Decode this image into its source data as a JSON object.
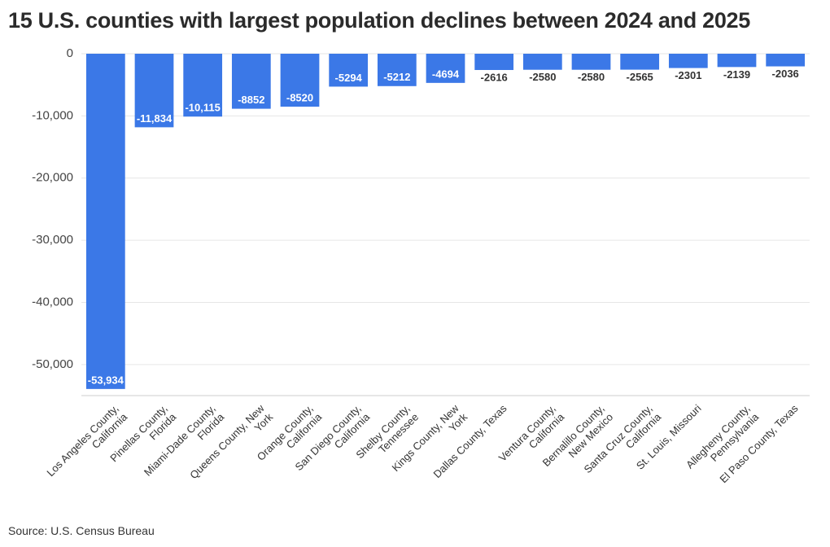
{
  "chart_data": {
    "type": "bar",
    "title": "15 U.S. counties with largest population declines between 2024 and 2025",
    "source": "Source: U.S. Census Bureau",
    "categories": [
      "Los Angeles County, California",
      "Pinellas County, Florida",
      "Miami-Dade County, Florida",
      "Queens County, New York",
      "Orange County, California",
      "San Diego County, California",
      "Shelby County, Tennessee",
      "Kings County, New York",
      "Dallas County, Texas",
      "Ventura County, California",
      "Bernalillo County, New Mexico",
      "Santa Cruz County, California",
      "St. Louis, Missouri",
      "Allegheny County, Pennsylvania",
      "El Paso County, Texas"
    ],
    "values": [
      -53934,
      -11834,
      -10115,
      -8852,
      -8520,
      -5294,
      -5212,
      -4694,
      -2616,
      -2580,
      -2580,
      -2565,
      -2301,
      -2139,
      -2036
    ],
    "value_labels": [
      "-53,934",
      "-11,834",
      "-10,115",
      "-8852",
      "-8520",
      "-5294",
      "-5212",
      "-4694",
      "-2616",
      "-2580",
      "-2580",
      "-2565",
      "-2301",
      "-2139",
      "-2036"
    ],
    "color": "#3b78e7",
    "ylim": [
      -55000,
      0
    ],
    "yticks": [
      0,
      {
        "value": -10000,
        "label": "-10,000"
      },
      {
        "value": -20000,
        "label": "-20,000"
      },
      {
        "value": -30000,
        "label": "-30,000"
      },
      {
        "value": -40000,
        "label": "-40,000"
      },
      {
        "value": -50000,
        "label": "-50,000"
      }
    ],
    "grid": true
  }
}
